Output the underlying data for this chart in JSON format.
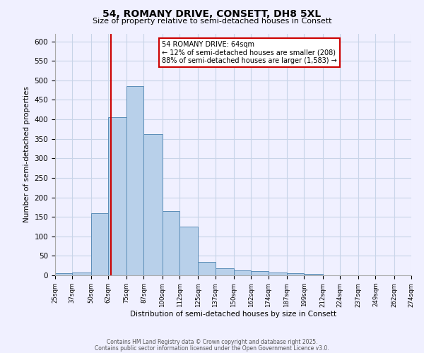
{
  "title": "54, ROMANY DRIVE, CONSETT, DH8 5XL",
  "subtitle": "Size of property relative to semi-detached houses in Consett",
  "xlabel": "Distribution of semi-detached houses by size in Consett",
  "ylabel": "Number of semi-detached properties",
  "annotation_line1": "54 ROMANY DRIVE: 64sqm",
  "annotation_line2": "← 12% of semi-detached houses are smaller (208)",
  "annotation_line3": "88% of semi-detached houses are larger (1,583) →",
  "footer_line1": "Contains HM Land Registry data © Crown copyright and database right 2025.",
  "footer_line2": "Contains public sector information licensed under the Open Government Licence v3.0.",
  "bin_edges": [
    25,
    37,
    50,
    62,
    75,
    87,
    100,
    112,
    125,
    137,
    150,
    162,
    174,
    187,
    199,
    212,
    224,
    237,
    249,
    262,
    274
  ],
  "bar_heights": [
    5,
    8,
    160,
    405,
    485,
    362,
    165,
    125,
    35,
    18,
    13,
    10,
    8,
    5,
    3,
    0,
    0,
    0,
    0,
    0
  ],
  "bar_color": "#b8d0ea",
  "bar_edge_color": "#5b8db8",
  "property_size": 64,
  "vline_color": "#cc0000",
  "tick_labels": [
    "25sqm",
    "37sqm",
    "50sqm",
    "62sqm",
    "75sqm",
    "87sqm",
    "100sqm",
    "112sqm",
    "125sqm",
    "137sqm",
    "150sqm",
    "162sqm",
    "174sqm",
    "187sqm",
    "199sqm",
    "212sqm",
    "224sqm",
    "237sqm",
    "249sqm",
    "262sqm",
    "274sqm"
  ],
  "ylim": [
    0,
    620
  ],
  "background_color": "#f0f0ff",
  "grid_color": "#c8d4e8",
  "annotation_box_color": "#ffffff",
  "annotation_box_edge": "#cc0000"
}
